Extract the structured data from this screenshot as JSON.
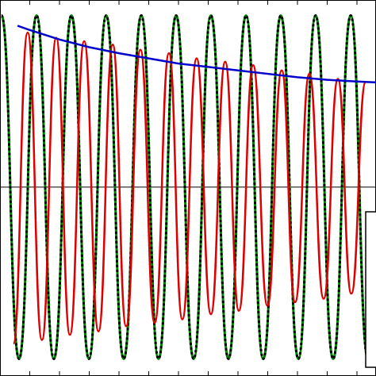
{
  "chart_data": {
    "type": "line",
    "xlim": [
      0,
      12.64
    ],
    "ylim": [
      -1.1,
      1.09
    ],
    "xticks": [
      1,
      2,
      3,
      4,
      5,
      6,
      7,
      8,
      9,
      10,
      11,
      12
    ],
    "hlines": [
      0
    ],
    "series": [
      {
        "color": "#008000",
        "interpolation": "cosine",
        "width": 3,
        "x": [
          0.05,
          0.64,
          1.23,
          1.81,
          2.4,
          2.99,
          3.57,
          4.16,
          4.75,
          5.33,
          5.92,
          6.51,
          7.09,
          7.68,
          8.27,
          8.85,
          9.44,
          10.03,
          10.61,
          11.2,
          11.79,
          12.37
        ],
        "values": [
          1,
          -1,
          1,
          -1,
          1,
          -1,
          1,
          -1,
          1,
          -1,
          1,
          -1,
          1,
          -1,
          1,
          -1,
          1,
          -1,
          1,
          -1,
          1,
          -1
        ]
      },
      {
        "color": "#000000",
        "interpolation": "cosine",
        "width": 3,
        "dash": "3 3",
        "x": [
          0.05,
          0.64,
          1.23,
          1.81,
          2.4,
          2.99,
          3.57,
          4.16,
          4.75,
          5.33,
          5.92,
          6.51,
          7.09,
          7.68,
          8.27,
          8.85,
          9.44,
          10.03,
          10.61,
          11.2,
          11.79,
          12.37
        ],
        "values": [
          1,
          -1,
          1,
          -1,
          1,
          -1,
          1,
          -1,
          1,
          -1,
          1,
          -1,
          1,
          -1,
          1,
          -1,
          1,
          -1,
          1,
          -1,
          1,
          -1
        ]
      },
      {
        "color": "#dd0000",
        "interpolation": "cosine",
        "width": 2.5,
        "x": [
          0.45,
          0.93,
          1.41,
          1.89,
          2.35,
          2.83,
          3.31,
          3.79,
          4.24,
          4.72,
          5.2,
          5.68,
          6.13,
          6.61,
          7.09,
          7.57,
          8.03,
          8.51,
          8.99,
          9.47,
          9.92,
          10.4,
          10.88,
          11.36,
          11.81,
          12.29
        ],
        "values": [
          -0.91,
          0.9,
          -0.89,
          0.87,
          -0.86,
          0.85,
          -0.84,
          0.83,
          -0.81,
          0.8,
          -0.79,
          0.78,
          -0.77,
          0.75,
          -0.74,
          0.73,
          -0.72,
          0.71,
          -0.69,
          0.68,
          -0.67,
          0.66,
          -0.65,
          0.63,
          -0.62,
          0.61
        ]
      },
      {
        "color": "#0000cc",
        "interpolation": "linear",
        "width": 2.5,
        "x": [
          0.59,
          1,
          2,
          3,
          4,
          5,
          6,
          7,
          8,
          9,
          10,
          11,
          12,
          12.64
        ],
        "values": [
          0.94,
          0.915,
          0.86,
          0.815,
          0.78,
          0.75,
          0.72,
          0.7,
          0.68,
          0.66,
          0.64,
          0.625,
          0.615,
          0.61
        ]
      }
    ]
  }
}
